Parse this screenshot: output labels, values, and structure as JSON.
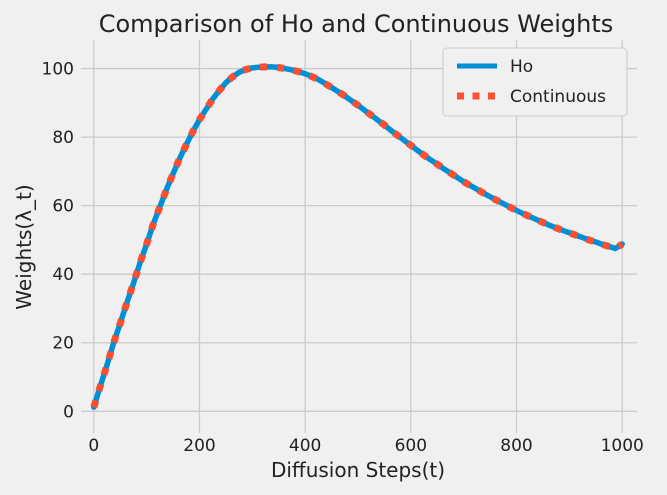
{
  "chart_data": {
    "type": "line",
    "title": "Comparison of Ho and Continuous Weights",
    "xlabel": "Diffusion Steps(t)",
    "ylabel": "Weights(λ_t)",
    "xlim": [
      -28,
      1028
    ],
    "ylim": [
      -4,
      106
    ],
    "xticks": [
      0,
      200,
      400,
      600,
      800,
      1000
    ],
    "yticks": [
      0,
      20,
      40,
      60,
      80,
      100
    ],
    "grid": true,
    "legend_position": "top-right",
    "background_color": "#f0f0f0",
    "grid_color": "#cbcbcb",
    "series": [
      {
        "name": "Ho",
        "style": "solid",
        "color": "#008fd5",
        "x": [
          0,
          12,
          25,
          37,
          50,
          62,
          75,
          87,
          100,
          112,
          125,
          137,
          150,
          162,
          175,
          187,
          200,
          212,
          225,
          237,
          250,
          262,
          275,
          287,
          300,
          312,
          325,
          337,
          350,
          362,
          375,
          387,
          400,
          412,
          425,
          437,
          450,
          462,
          475,
          487,
          500,
          512,
          525,
          537,
          550,
          562,
          575,
          587,
          600,
          612,
          625,
          637,
          650,
          662,
          675,
          687,
          700,
          712,
          725,
          737,
          750,
          762,
          775,
          787,
          800,
          812,
          825,
          837,
          850,
          862,
          875,
          887,
          900,
          912,
          925,
          937,
          950,
          962,
          975,
          987,
          1000
        ],
        "y": [
          1.2,
          7.2,
          13.5,
          19.7,
          25.7,
          31.4,
          37.3,
          43.1,
          48.8,
          54.4,
          59.6,
          64.5,
          69.3,
          73.6,
          77.8,
          81.5,
          85.1,
          88.0,
          91.1,
          93.5,
          95.9,
          97.5,
          98.9,
          99.7,
          100.2,
          100.4,
          100.5,
          100.5,
          100.3,
          100.0,
          99.6,
          99.1,
          98.5,
          97.7,
          96.8,
          95.7,
          94.5,
          93.3,
          92.0,
          90.7,
          89.3,
          87.9,
          86.4,
          85.0,
          83.5,
          82.0,
          80.5,
          79.1,
          77.6,
          76.2,
          74.7,
          73.4,
          72.1,
          70.8,
          69.5,
          68.3,
          67.0,
          65.9,
          64.8,
          63.7,
          62.6,
          61.6,
          60.6,
          59.6,
          58.6,
          57.7,
          56.8,
          56.0,
          55.1,
          54.3,
          53.5,
          52.8,
          52.1,
          51.4,
          50.7,
          50.0,
          49.4,
          48.7,
          48.1,
          47.5,
          48.8
        ]
      },
      {
        "name": "Continuous",
        "style": "dotted",
        "color": "#fc4f30",
        "x": [
          0,
          12,
          25,
          37,
          50,
          62,
          75,
          87,
          100,
          112,
          125,
          137,
          150,
          162,
          175,
          187,
          200,
          212,
          225,
          237,
          250,
          262,
          275,
          287,
          300,
          312,
          325,
          337,
          350,
          362,
          375,
          387,
          400,
          412,
          425,
          437,
          450,
          462,
          475,
          487,
          500,
          512,
          525,
          537,
          550,
          562,
          575,
          587,
          600,
          612,
          625,
          637,
          650,
          662,
          675,
          687,
          700,
          712,
          725,
          737,
          750,
          762,
          775,
          787,
          800,
          812,
          825,
          837,
          850,
          862,
          875,
          887,
          900,
          912,
          925,
          937,
          950,
          962,
          975,
          987,
          1000
        ],
        "y": [
          1.2,
          7.2,
          13.5,
          19.7,
          25.7,
          31.4,
          37.3,
          43.1,
          48.8,
          54.4,
          59.6,
          64.5,
          69.3,
          73.6,
          77.8,
          81.5,
          85.1,
          88.0,
          91.1,
          93.5,
          95.9,
          97.5,
          98.9,
          99.7,
          100.2,
          100.4,
          100.5,
          100.5,
          100.3,
          100.0,
          99.6,
          99.1,
          98.5,
          97.7,
          96.8,
          95.7,
          94.5,
          93.3,
          92.0,
          90.7,
          89.3,
          87.9,
          86.4,
          85.0,
          83.5,
          82.0,
          80.5,
          79.1,
          77.6,
          76.2,
          74.7,
          73.4,
          72.1,
          70.8,
          69.5,
          68.3,
          67.0,
          65.9,
          64.8,
          63.7,
          62.6,
          61.6,
          60.6,
          59.6,
          58.6,
          57.7,
          56.8,
          56.0,
          55.1,
          54.3,
          53.5,
          52.8,
          52.1,
          51.4,
          50.7,
          50.0,
          49.4,
          48.7,
          48.1,
          47.5,
          48.8
        ]
      }
    ]
  }
}
